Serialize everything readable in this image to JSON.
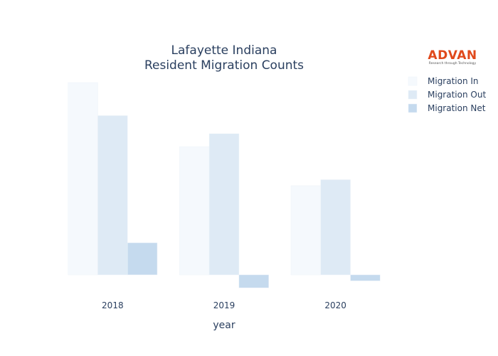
{
  "logo": {
    "name": "ADVAN",
    "tagline": "Research through Technology"
  },
  "chart_data": {
    "type": "bar",
    "title_lines": [
      "Lafayette Indiana",
      "Resident Migration Counts"
    ],
    "xlabel": "year",
    "ylabel": "",
    "categories": [
      "2018",
      "2019",
      "2020"
    ],
    "series": [
      {
        "name": "Migration In",
        "color": "#f5f9fd",
        "values": [
          9600,
          6400,
          4450
        ]
      },
      {
        "name": "Migration Out",
        "color": "#deeaf5",
        "values": [
          7950,
          7050,
          4750
        ]
      },
      {
        "name": "Migration Net",
        "color": "#c5daee",
        "values": [
          1600,
          -650,
          -300
        ]
      }
    ],
    "ylim": [
      -900,
      10000
    ],
    "legend": "top-right",
    "grid": false
  }
}
